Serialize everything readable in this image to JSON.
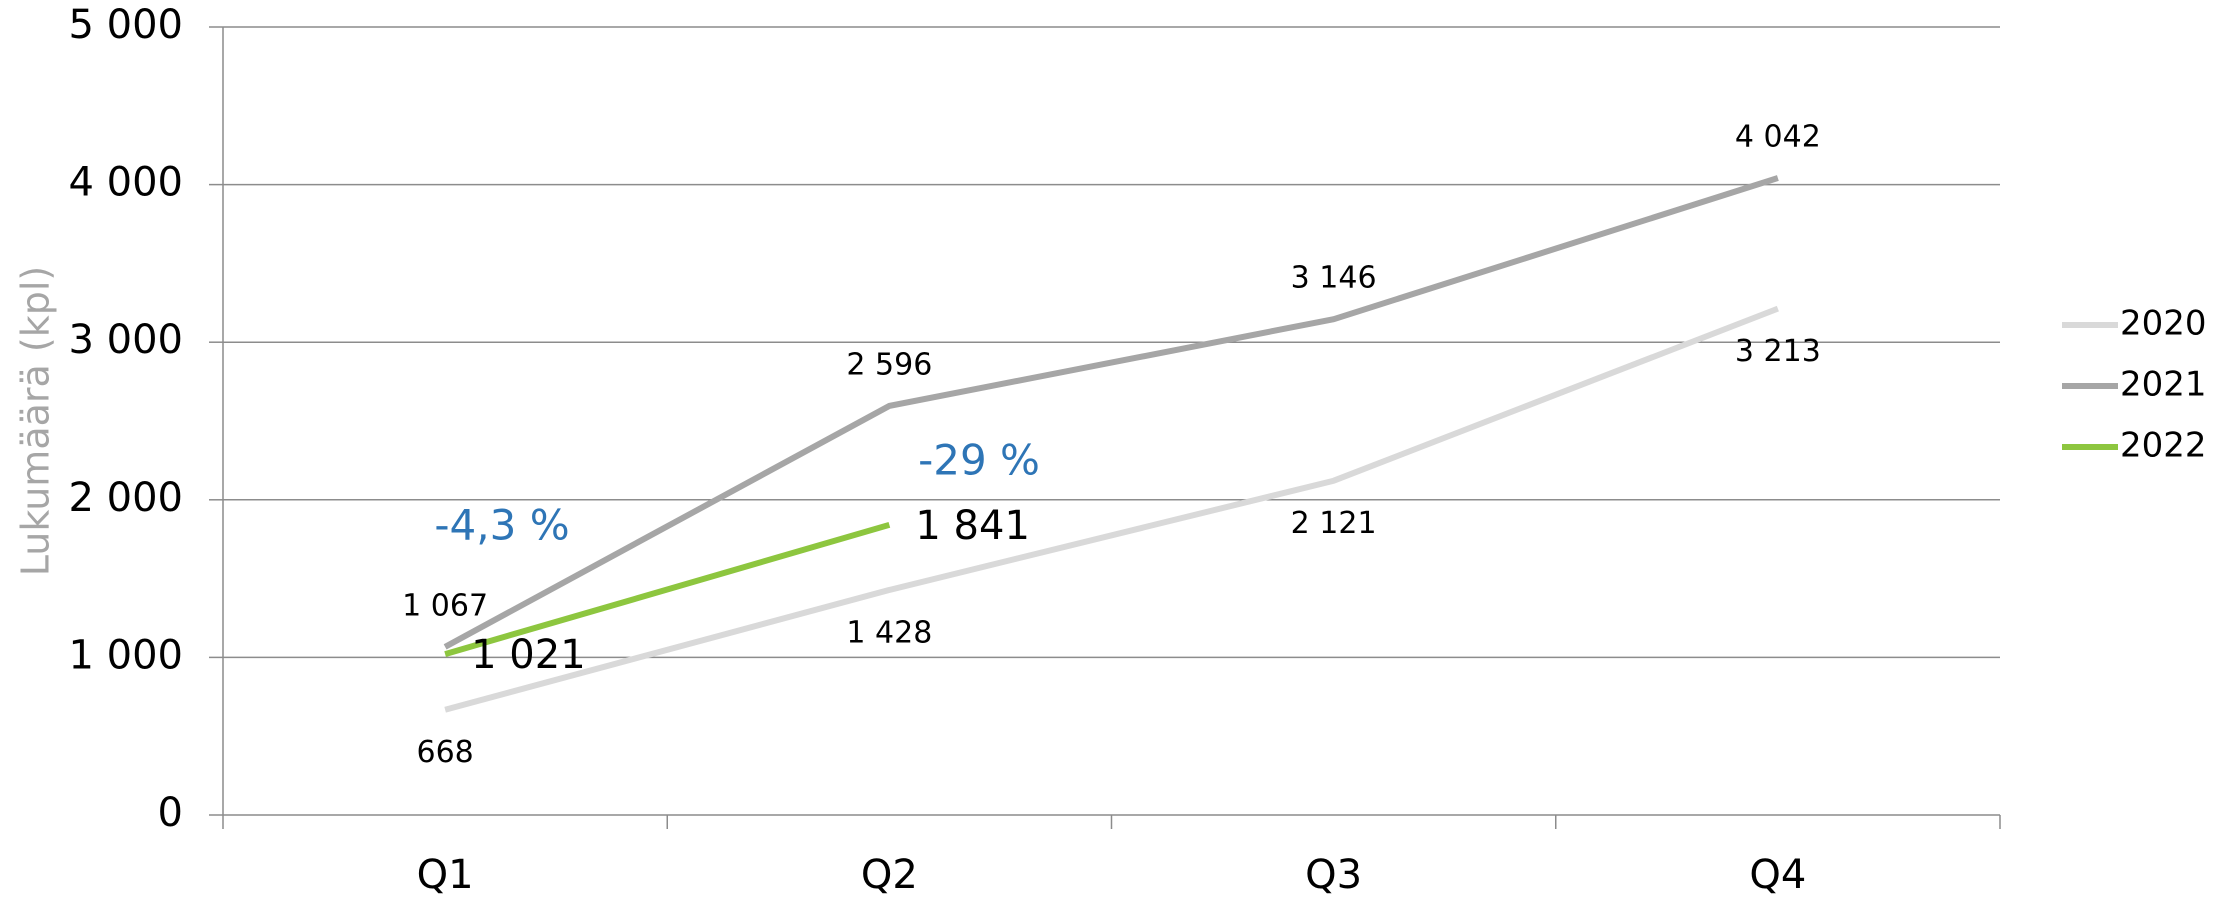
{
  "chart_data": {
    "type": "line",
    "y_label": "Lukumäärä (kpl)",
    "categories": [
      "Q1",
      "Q2",
      "Q3",
      "Q4"
    ],
    "series": [
      {
        "name": "2020",
        "color": "#d9d9d9",
        "values": [
          668,
          1428,
          2121,
          3213
        ],
        "value_labels": [
          "668",
          "1 428",
          "2 121",
          "3 213"
        ]
      },
      {
        "name": "2021",
        "color": "#a6a6a6",
        "values": [
          1067,
          2596,
          3146,
          4042
        ],
        "value_labels": [
          "1 067",
          "2 596",
          "3 146",
          "4 042"
        ]
      },
      {
        "name": "2022",
        "color": "#8dc63f",
        "values": [
          1021,
          1841,
          null,
          null
        ],
        "value_labels": [
          "1 021",
          "1 841",
          null,
          null
        ]
      }
    ],
    "annotations": [
      "-4,3 %",
      "-29 %"
    ],
    "annotation_color": "#2e75b6",
    "ylim": [
      0,
      5000
    ],
    "yticks": [
      {
        "value": 0,
        "label": "0"
      },
      {
        "value": 1000,
        "label": "1 000"
      },
      {
        "value": 2000,
        "label": "2 000"
      },
      {
        "value": 3000,
        "label": "3 000"
      },
      {
        "value": 4000,
        "label": "4 000"
      },
      {
        "value": 5000,
        "label": "5 000"
      }
    ],
    "grid": true,
    "legend": "right"
  }
}
